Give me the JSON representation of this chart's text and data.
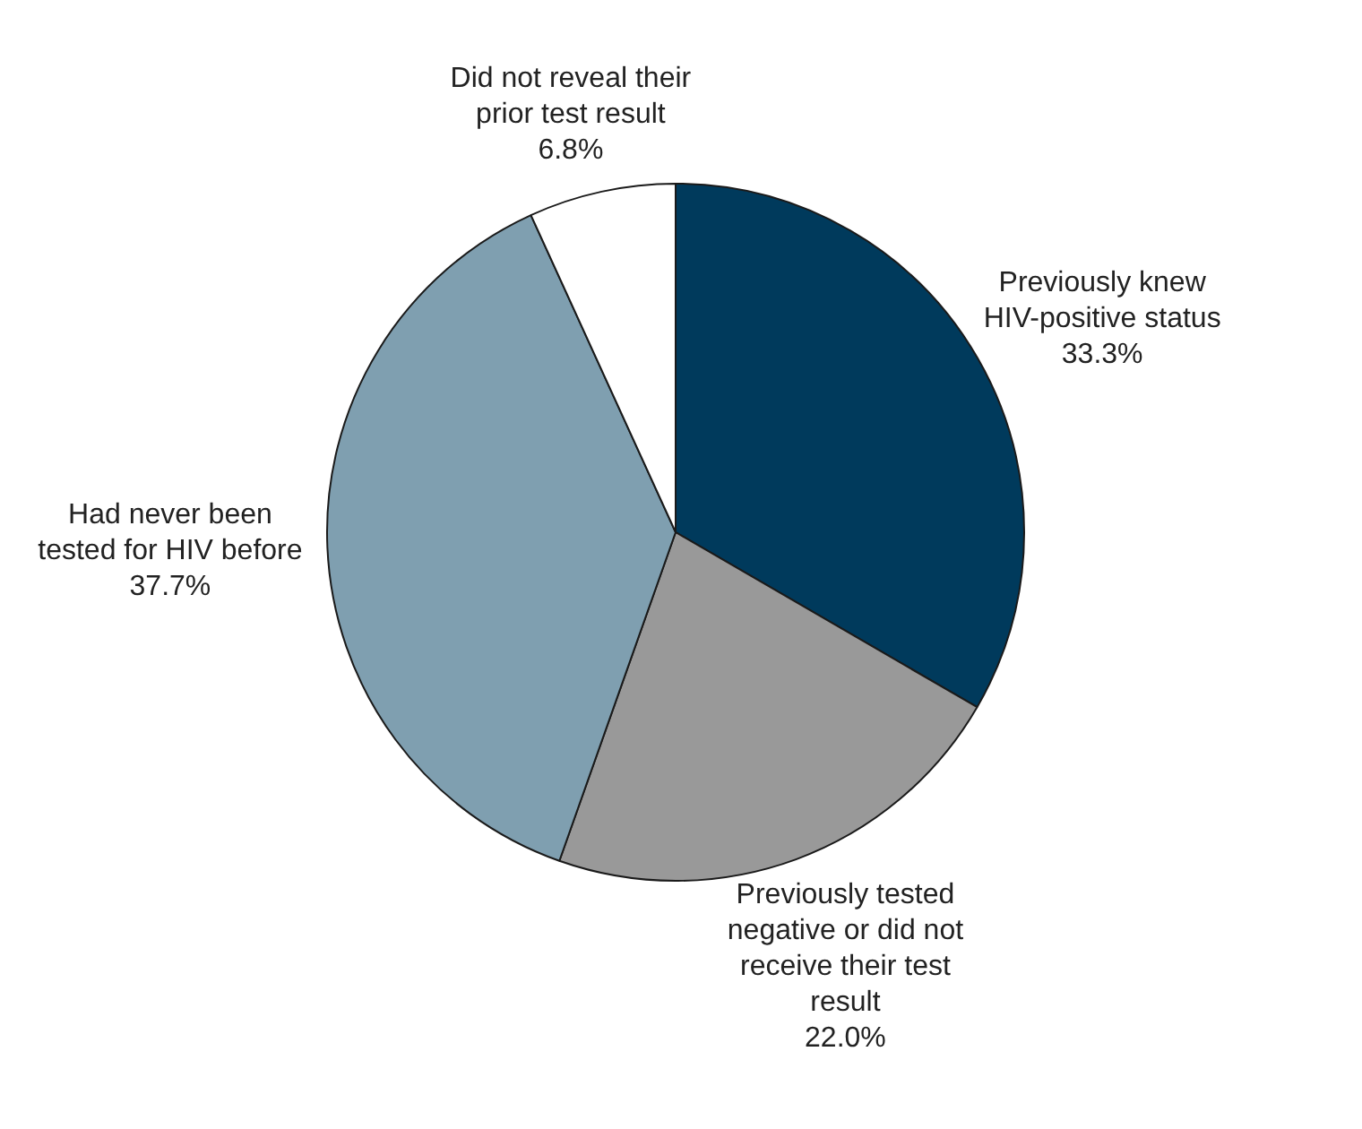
{
  "chart_data": {
    "type": "pie",
    "categories": [
      "Previously knew HIV-positive status",
      "Previously tested negative or did not receive their test result",
      "Had never been tested for HIV before",
      "Did not reveal their prior test result"
    ],
    "values": [
      33.3,
      22.0,
      37.7,
      6.8
    ],
    "colors": [
      "#003a5c",
      "#999999",
      "#7f9fb0",
      "#ffffff"
    ],
    "value_labels": [
      "33.3%",
      "22.0%",
      "37.7%",
      "6.8%"
    ],
    "legend": false
  }
}
